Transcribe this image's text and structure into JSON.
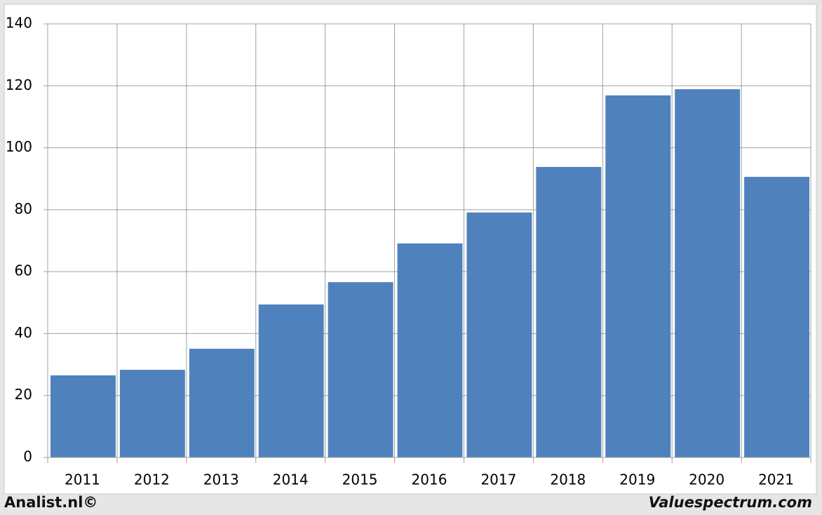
{
  "chart_data": {
    "type": "bar",
    "categories": [
      "2011",
      "2012",
      "2013",
      "2014",
      "2015",
      "2016",
      "2017",
      "2018",
      "2019",
      "2020",
      "2021"
    ],
    "values": [
      26.5,
      28.3,
      35.1,
      49.4,
      56.6,
      69.1,
      79.1,
      93.8,
      116.9,
      118.9,
      90.6
    ],
    "color": "#4f81bd",
    "ylim": [
      0,
      140
    ],
    "yticks": [
      0,
      20,
      40,
      60,
      80,
      100,
      120,
      140
    ],
    "grid": true
  },
  "footer": {
    "left": "Analist.nl©",
    "right": "Valuespectrum.com"
  }
}
